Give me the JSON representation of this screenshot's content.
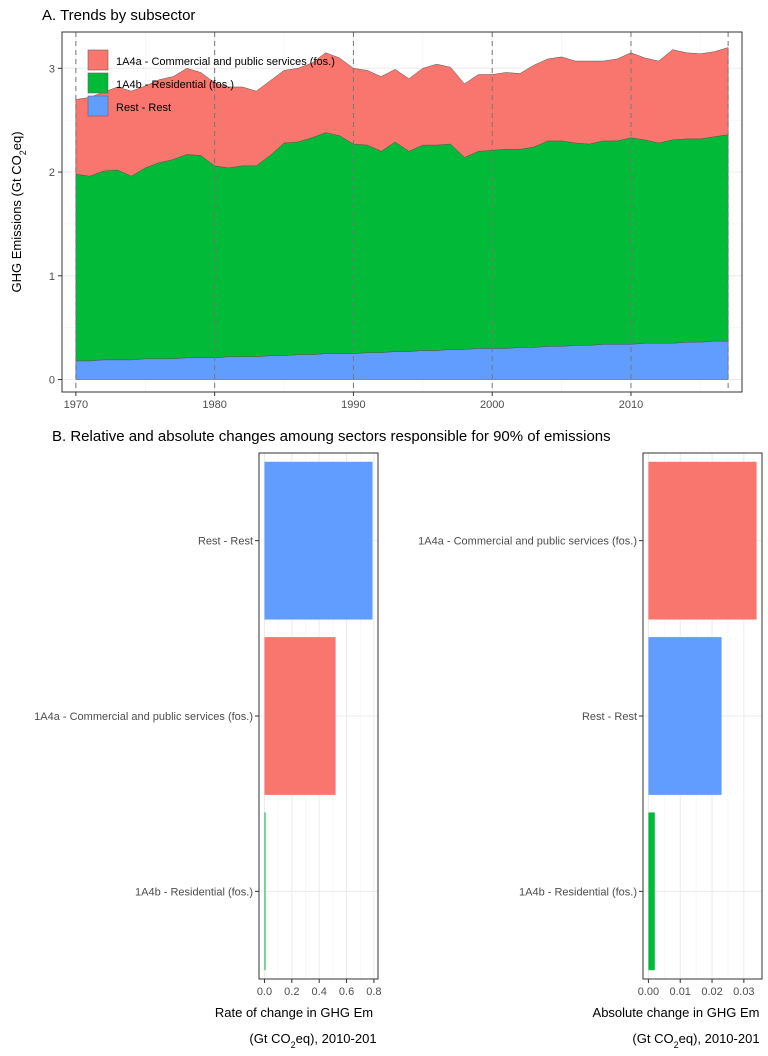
{
  "panel_a": {
    "title": "A. Trends by subsector",
    "ylabel_main": "GHG Emissions (Gt CO",
    "ylabel_sub": "2",
    "ylabel_end": "eq)",
    "legend": [
      {
        "label": "1A4a - Commercial and public services (fos.)",
        "color": "#F8766D"
      },
      {
        "label": "1A4b - Residential (fos.)",
        "color": "#00BA38"
      },
      {
        "label": "Rest - Rest",
        "color": "#619CFF"
      }
    ]
  },
  "panel_b": {
    "title": "B. Relative and absolute changes amoung sectors responsible for 90% of emissions",
    "left_xlabel_line1": "Rate of change in GHG Em",
    "left_xlabel_line2_a": "(Gt CO",
    "left_xlabel_line2_sub": "2",
    "left_xlabel_line2_b": "eq), 2010-201",
    "right_xlabel_line1": "Absolute change in GHG Em",
    "right_xlabel_line2_a": "(Gt CO",
    "right_xlabel_line2_sub": "2",
    "right_xlabel_line2_b": "eq), 2010-201"
  },
  "chart_data": [
    {
      "type": "area",
      "stacked": true,
      "x": [
        1970,
        1971,
        1972,
        1973,
        1974,
        1975,
        1976,
        1977,
        1978,
        1979,
        1980,
        1981,
        1982,
        1983,
        1984,
        1985,
        1986,
        1987,
        1988,
        1989,
        1990,
        1991,
        1992,
        1993,
        1994,
        1995,
        1996,
        1997,
        1998,
        1999,
        2000,
        2001,
        2002,
        2003,
        2004,
        2005,
        2006,
        2007,
        2008,
        2009,
        2010,
        2011,
        2012,
        2013,
        2014,
        2015,
        2016,
        2017
      ],
      "series": [
        {
          "name": "Rest - Rest",
          "color": "#619CFF",
          "values": [
            0.18,
            0.18,
            0.19,
            0.19,
            0.19,
            0.2,
            0.2,
            0.2,
            0.21,
            0.21,
            0.21,
            0.22,
            0.22,
            0.22,
            0.23,
            0.23,
            0.24,
            0.24,
            0.25,
            0.25,
            0.25,
            0.26,
            0.26,
            0.27,
            0.27,
            0.28,
            0.28,
            0.29,
            0.29,
            0.3,
            0.3,
            0.3,
            0.31,
            0.31,
            0.32,
            0.32,
            0.33,
            0.33,
            0.34,
            0.34,
            0.34,
            0.35,
            0.35,
            0.35,
            0.36,
            0.36,
            0.37,
            0.37
          ]
        },
        {
          "name": "1A4b - Residential (fos.)",
          "color": "#00BA38",
          "values": [
            1.8,
            1.78,
            1.82,
            1.83,
            1.77,
            1.84,
            1.89,
            1.92,
            1.96,
            1.95,
            1.85,
            1.82,
            1.84,
            1.84,
            1.93,
            2.05,
            2.05,
            2.09,
            2.13,
            2.1,
            2.02,
            2.0,
            1.94,
            2.02,
            1.93,
            1.98,
            1.98,
            1.98,
            1.85,
            1.9,
            1.91,
            1.92,
            1.91,
            1.93,
            1.98,
            1.98,
            1.95,
            1.94,
            1.96,
            1.96,
            1.99,
            1.96,
            1.93,
            1.96,
            1.96,
            1.96,
            1.97,
            1.99
          ]
        },
        {
          "name": "1A4a - Commercial and public services (fos.)",
          "color": "#F8766D",
          "values": [
            0.72,
            0.76,
            0.76,
            0.8,
            0.82,
            0.79,
            0.8,
            0.8,
            0.83,
            0.8,
            0.8,
            0.78,
            0.76,
            0.72,
            0.72,
            0.7,
            0.71,
            0.72,
            0.77,
            0.75,
            0.73,
            0.72,
            0.72,
            0.7,
            0.7,
            0.74,
            0.78,
            0.74,
            0.71,
            0.74,
            0.73,
            0.74,
            0.73,
            0.79,
            0.79,
            0.81,
            0.79,
            0.8,
            0.77,
            0.79,
            0.82,
            0.79,
            0.79,
            0.87,
            0.83,
            0.82,
            0.82,
            0.84
          ]
        }
      ],
      "xticks": [
        1970,
        1980,
        1990,
        2000,
        2010
      ],
      "xlim": [
        1969.0,
        2018.0
      ],
      "yticks": [
        0,
        1,
        2,
        3
      ],
      "ylim": [
        -0.12,
        3.35
      ],
      "vlines": [
        1970,
        1980,
        1990,
        2000,
        2010,
        2017
      ],
      "legend_position": "top-left"
    },
    {
      "type": "bar",
      "orientation": "horizontal",
      "categories": [
        "Rest - Rest",
        "1A4a - Commercial and public services (fos.)",
        "1A4b - Residential (fos.)"
      ],
      "values": [
        0.79,
        0.52,
        0.005
      ],
      "colors": [
        "#619CFF",
        "#F8766D",
        "#00BA38"
      ],
      "xticks": [
        0.0,
        0.2,
        0.4,
        0.6,
        0.8
      ],
      "xtick_labels": [
        "0.0",
        "0.2",
        "0.4",
        "0.6",
        "0.8"
      ],
      "xlim": [
        -0.04,
        0.83
      ]
    },
    {
      "type": "bar",
      "orientation": "horizontal",
      "categories": [
        "1A4a - Commercial and public services (fos.)",
        "Rest - Rest",
        "1A4b - Residential (fos.)"
      ],
      "values": [
        0.034,
        0.023,
        0.002
      ],
      "colors": [
        "#F8766D",
        "#619CFF",
        "#00BA38"
      ],
      "xticks": [
        0.0,
        0.01,
        0.02,
        0.03
      ],
      "xtick_labels": [
        "0.00",
        "0.01",
        "0.02",
        "0.03"
      ],
      "xlim": [
        -0.0017,
        0.0357
      ]
    }
  ]
}
